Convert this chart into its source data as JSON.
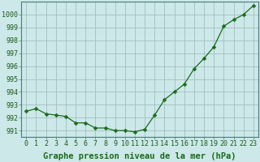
{
  "x": [
    0,
    1,
    2,
    3,
    4,
    5,
    6,
    7,
    8,
    9,
    10,
    11,
    12,
    13,
    14,
    15,
    16,
    17,
    18,
    19,
    20,
    21,
    22,
    23
  ],
  "y": [
    992.5,
    992.7,
    992.3,
    992.2,
    992.1,
    991.6,
    991.6,
    991.2,
    991.2,
    991.0,
    991.0,
    990.9,
    991.1,
    992.2,
    993.4,
    994.0,
    994.6,
    995.8,
    996.6,
    997.5,
    999.1,
    999.6,
    1000.0,
    1000.7
  ],
  "line_color": "#1a6b1a",
  "marker": "D",
  "marker_size": 2.5,
  "bg_color": "#cce8e8",
  "grid_color": "#9ab8b8",
  "xlabel": "Graphe pression niveau de la mer (hPa)",
  "xlabel_fontsize": 7.5,
  "tick_fontsize": 6,
  "ylim": [
    990.5,
    1001.0
  ],
  "xlim": [
    -0.5,
    23.5
  ],
  "yticks": [
    991,
    992,
    993,
    994,
    995,
    996,
    997,
    998,
    999,
    1000
  ],
  "xticks": [
    0,
    1,
    2,
    3,
    4,
    5,
    6,
    7,
    8,
    9,
    10,
    11,
    12,
    13,
    14,
    15,
    16,
    17,
    18,
    19,
    20,
    21,
    22,
    23
  ]
}
